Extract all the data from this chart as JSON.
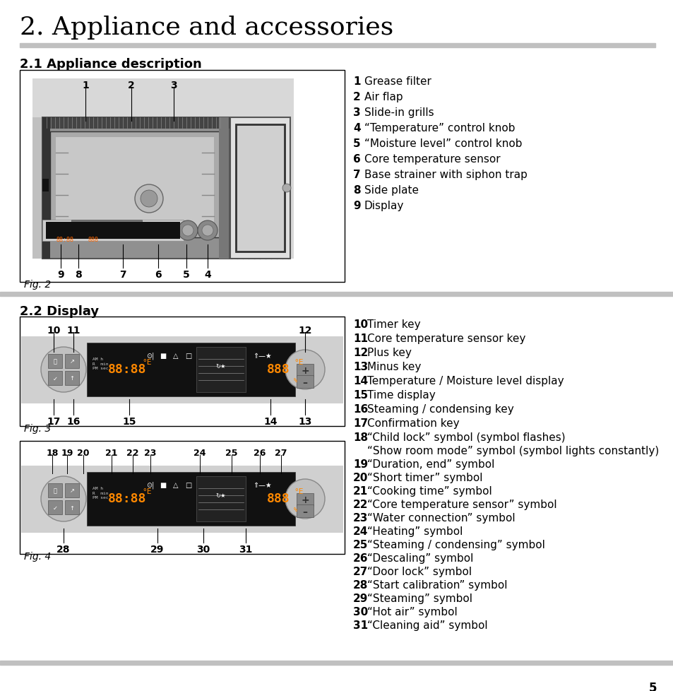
{
  "page_title": "2. Appliance and accessories",
  "section1_title": "2.1 Appliance description",
  "section2_title": "2.2 Display",
  "section1_items": [
    [
      "1",
      "Grease filter"
    ],
    [
      "2",
      "Air flap"
    ],
    [
      "3",
      "Slide-in grills"
    ],
    [
      "4",
      "“Temperature” control knob"
    ],
    [
      "5",
      "“Moisture level” control knob"
    ],
    [
      "6",
      "Core temperature sensor"
    ],
    [
      "7",
      "Base strainer with siphon trap"
    ],
    [
      "8",
      "Side plate"
    ],
    [
      "9",
      "Display"
    ]
  ],
  "section2_items_a": [
    [
      "10",
      "Timer key"
    ],
    [
      "11",
      "Core temperature sensor key"
    ],
    [
      "12",
      "Plus key"
    ],
    [
      "13",
      "Minus key"
    ],
    [
      "14",
      "Temperature / Moisture level display"
    ],
    [
      "15",
      "Time display"
    ],
    [
      "16",
      "Steaming / condensing key"
    ],
    [
      "17",
      "Confirmation key"
    ]
  ],
  "section2_items_b": [
    [
      "18",
      "“Child lock” symbol (symbol flashes)",
      "“Show room mode” symbol (symbol lights constantly)"
    ],
    [
      "19",
      "“Duration, end” symbol",
      ""
    ],
    [
      "20",
      "“Short timer” symbol",
      ""
    ],
    [
      "21",
      "“Cooking time” symbol",
      ""
    ],
    [
      "22",
      "“Core temperature sensor” symbol",
      ""
    ],
    [
      "23",
      "“Water connection” symbol",
      ""
    ],
    [
      "24",
      "“Heating” symbol",
      ""
    ],
    [
      "25",
      "“Steaming / condensing” symbol",
      ""
    ],
    [
      "26",
      "“Descaling” symbol",
      ""
    ],
    [
      "27",
      "“Door lock” symbol",
      ""
    ],
    [
      "28",
      "“Start calibration” symbol",
      ""
    ],
    [
      "29",
      "“Steaming” symbol",
      ""
    ],
    [
      "30",
      "“Hot air” symbol",
      ""
    ],
    [
      "31",
      "“Cleaning aid” symbol",
      ""
    ]
  ],
  "page_number": "5",
  "bg_color": "#ffffff",
  "text_color": "#000000",
  "section_bar_color": "#c0c0c0",
  "item_num_font": 11,
  "item_desc_font": 11,
  "title_font": 26,
  "section_font": 13,
  "fig_caption_font": 10
}
